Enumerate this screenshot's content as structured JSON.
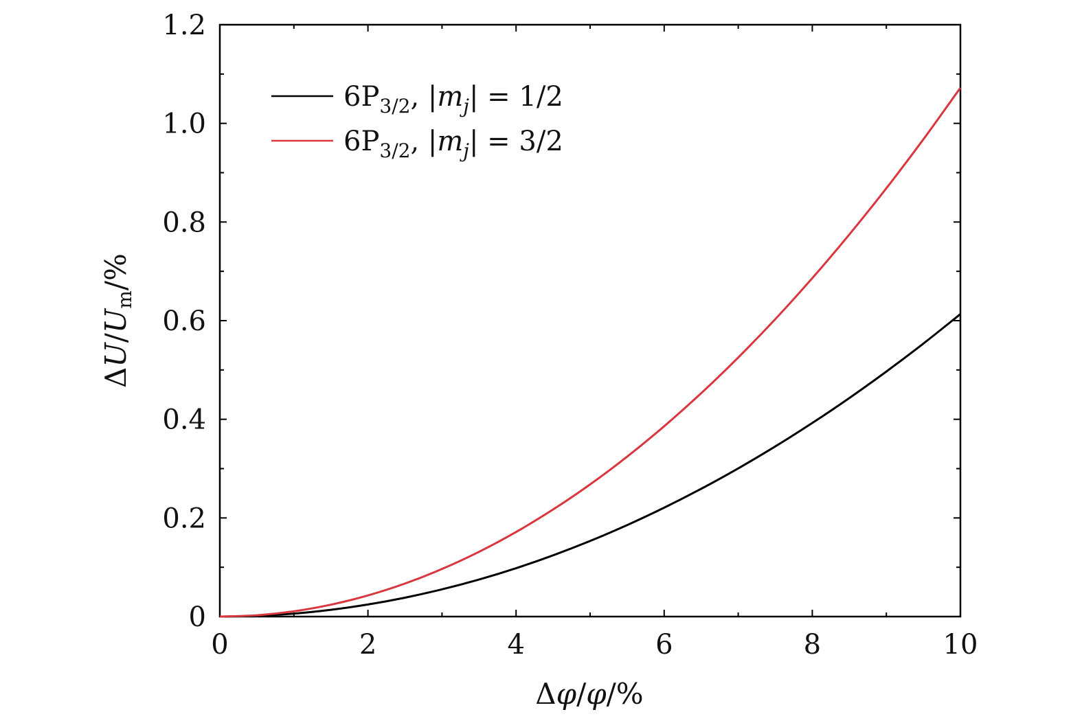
{
  "chart_data": {
    "type": "line",
    "x_tick_labels": [
      "0",
      "2",
      "4",
      "6",
      "8",
      "10"
    ],
    "y_tick_labels": [
      "0",
      "0.2",
      "0.4",
      "0.6",
      "0.8",
      "1.0",
      "1.2"
    ],
    "xlim": [
      0,
      10
    ],
    "ylim": [
      0,
      1.2
    ],
    "grid": false,
    "legend_position": "top-left",
    "xlabel": {
      "delta": "Δ",
      "phi1": "φ",
      "slash1": "/",
      "phi2": "φ",
      "slash2": "/%"
    },
    "ylabel": {
      "delta": "Δ",
      "u1": "U",
      "slash1": "/",
      "u2": "U",
      "sub": "m",
      "slash2": "/%"
    },
    "series": [
      {
        "name": "6P3/2, |mj| = 1/2",
        "legend": {
          "lead": "6P",
          "sub": "3/2",
          "mid": ", |",
          "m": "m",
          "j": "j",
          "tail": "| = 1/2"
        },
        "color": "#000000",
        "x": [
          0,
          0.5,
          1,
          1.5,
          2,
          2.5,
          3,
          3.5,
          4,
          4.5,
          5,
          5.5,
          6,
          6.5,
          7,
          7.5,
          8,
          8.5,
          9,
          9.5,
          10
        ],
        "y": [
          0,
          0.0015,
          0.006,
          0.0138,
          0.0245,
          0.0383,
          0.0552,
          0.0751,
          0.0981,
          0.1242,
          0.1533,
          0.1855,
          0.2208,
          0.2591,
          0.3005,
          0.345,
          0.3925,
          0.4431,
          0.4968,
          0.5535,
          0.6133
        ]
      },
      {
        "name": "6P3/2, |mj| = 3/2",
        "legend": {
          "lead": "6P",
          "sub": "3/2",
          "mid": ", |",
          "m": "m",
          "j": "j",
          "tail": "| = 3/2"
        },
        "color": "#d9363e",
        "x": [
          0,
          0.5,
          1,
          1.5,
          2,
          2.5,
          3,
          3.5,
          4,
          4.5,
          5,
          5.5,
          6,
          6.5,
          7,
          7.5,
          8,
          8.5,
          9,
          9.5,
          10
        ],
        "y": [
          0,
          0.0027,
          0.0107,
          0.0241,
          0.0429,
          0.067,
          0.0965,
          0.1313,
          0.1715,
          0.2171,
          0.268,
          0.3243,
          0.3859,
          0.4529,
          0.5253,
          0.603,
          0.6861,
          0.7746,
          0.8684,
          0.9676,
          1.0721
        ]
      }
    ]
  }
}
